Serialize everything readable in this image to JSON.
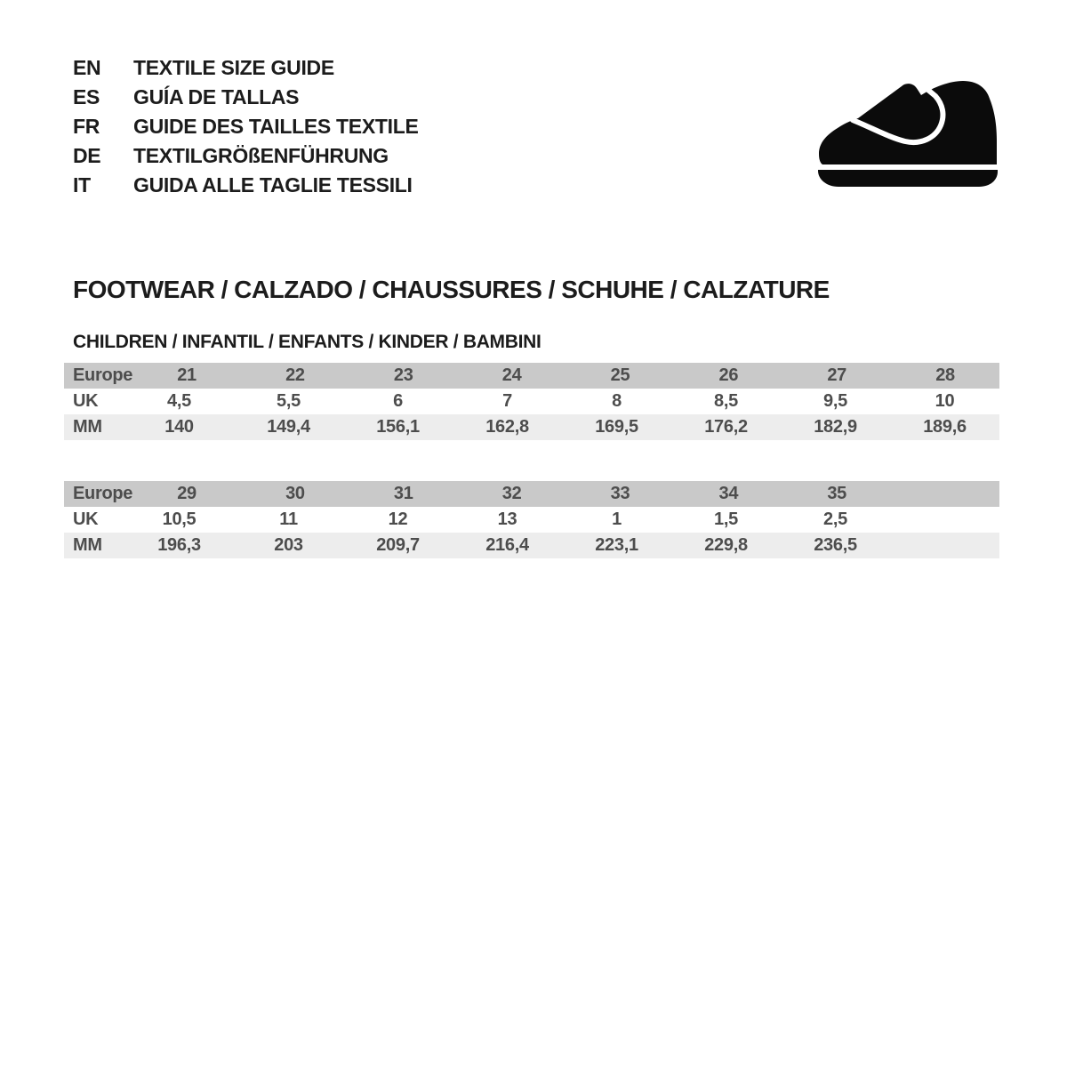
{
  "header": {
    "languages": [
      {
        "code": "EN",
        "title": "TEXTILE SIZE GUIDE"
      },
      {
        "code": "ES",
        "title": "GUÍA DE TALLAS"
      },
      {
        "code": "FR",
        "title": "GUIDE DES TAILLES TEXTILE"
      },
      {
        "code": "DE",
        "title": "TEXTILGRÖßENFÜHRUNG"
      },
      {
        "code": "IT",
        "title": "GUIDA ALLE TAGLIE TESSILI"
      }
    ],
    "logo_icon": "children-shoe-icon",
    "logo_color": "#0b0b0b"
  },
  "section": {
    "title": "FOOTWEAR / CALZADO / CHAUSSURES / SCHUHE / CALZATURE",
    "subtitle": "CHILDREN / INFANTIL / ENFANTS / KINDER / BAMBINI"
  },
  "size_tables": [
    {
      "rows": [
        {
          "label": "Europe",
          "values": [
            "21",
            "22",
            "23",
            "24",
            "25",
            "26",
            "27",
            "28"
          ]
        },
        {
          "label": "UK",
          "values": [
            "4,5",
            "5,5",
            "6",
            "7",
            "8",
            "8,5",
            "9,5",
            "10"
          ]
        },
        {
          "label": "MM",
          "values": [
            "140",
            "149,4",
            "156,1",
            "162,8",
            "169,5",
            "176,2",
            "182,9",
            "189,6"
          ]
        }
      ]
    },
    {
      "rows": [
        {
          "label": "Europe",
          "values": [
            "29",
            "30",
            "31",
            "32",
            "33",
            "34",
            "35",
            ""
          ]
        },
        {
          "label": "UK",
          "values": [
            "10,5",
            "11",
            "12",
            "13",
            "1",
            "1,5",
            "2,5",
            ""
          ]
        },
        {
          "label": "MM",
          "values": [
            "196,3",
            "203",
            "209,7",
            "216,4",
            "223,1",
            "229,8",
            "236,5",
            ""
          ]
        }
      ]
    }
  ],
  "colors": {
    "header_row_bg": "#c9c9c9",
    "striped_row_bg": "#ededed",
    "table_text": "#4d4d4d",
    "heading_text": "#1c1c1c"
  }
}
